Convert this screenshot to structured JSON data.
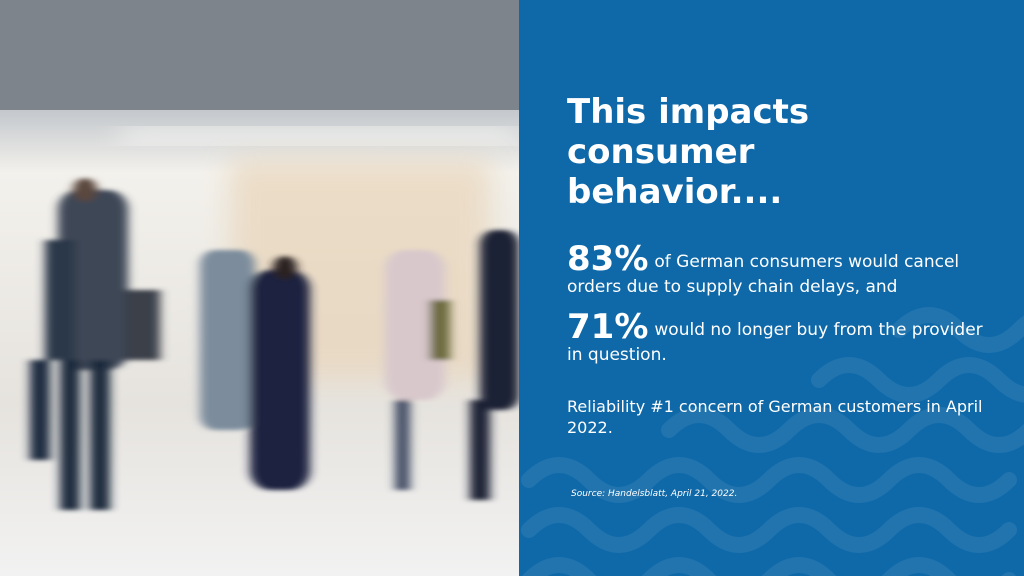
{
  "slide": {
    "title": "This impacts consumer behavior....",
    "stats": [
      {
        "figure": "83%",
        "text": "of German consumers would cancel orders due to supply chain delays, and"
      },
      {
        "figure": "71%",
        "text": "would no longer buy from the provider in question."
      }
    ],
    "note": "Reliability #1 concern of German customers in April 2022.",
    "source": "Source: Handelsblatt, April 21, 2022."
  }
}
